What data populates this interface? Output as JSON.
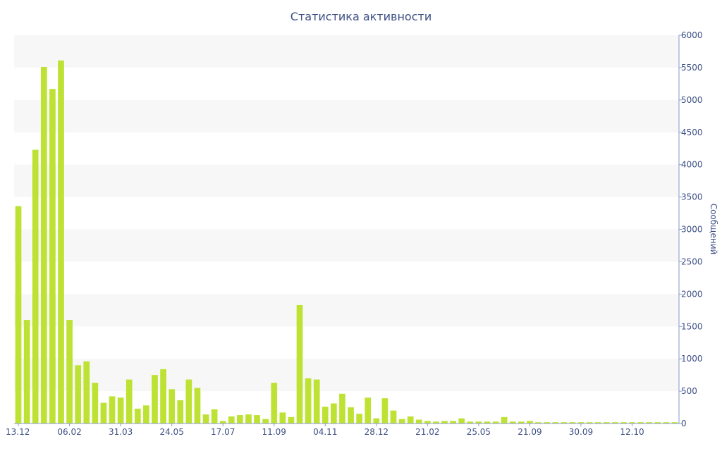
{
  "chart_data": {
    "type": "bar",
    "title": "Статистика активности",
    "ylabel": "Сообщений",
    "ylim": [
      0,
      6000
    ],
    "yticks": [
      0,
      500,
      1000,
      1500,
      2000,
      2500,
      3000,
      3500,
      4000,
      4500,
      5000,
      5500,
      6000
    ],
    "x_tick_labels": [
      {
        "index": 0,
        "label": "13.12"
      },
      {
        "index": 6,
        "label": "06.02"
      },
      {
        "index": 12,
        "label": "31.03"
      },
      {
        "index": 18,
        "label": "24.05"
      },
      {
        "index": 24,
        "label": "17.07"
      },
      {
        "index": 30,
        "label": "11.09"
      },
      {
        "index": 36,
        "label": "04.11"
      },
      {
        "index": 42,
        "label": "28.12"
      },
      {
        "index": 48,
        "label": "21.02"
      },
      {
        "index": 54,
        "label": "25.05"
      },
      {
        "index": 60,
        "label": "21.09"
      },
      {
        "index": 66,
        "label": "30.09"
      },
      {
        "index": 72,
        "label": "12.10"
      }
    ],
    "grid": "alternating horizontal bands",
    "bar_color": "#bde234",
    "text_color": "#3d4f85",
    "band_color": "#f7f7f7",
    "values": [
      3360,
      1600,
      4230,
      5510,
      5170,
      5610,
      1600,
      900,
      960,
      630,
      320,
      420,
      400,
      680,
      230,
      280,
      750,
      840,
      530,
      360,
      680,
      550,
      140,
      220,
      40,
      110,
      130,
      140,
      130,
      70,
      630,
      170,
      100,
      1830,
      700,
      680,
      260,
      310,
      460,
      250,
      150,
      400,
      80,
      390,
      200,
      70,
      110,
      60,
      40,
      30,
      40,
      40,
      80,
      30,
      30,
      30,
      30,
      100,
      30,
      30,
      40,
      20,
      20,
      20,
      20,
      20,
      20,
      20,
      20,
      20,
      20,
      20,
      20,
      20,
      20,
      20,
      20,
      20
    ]
  }
}
